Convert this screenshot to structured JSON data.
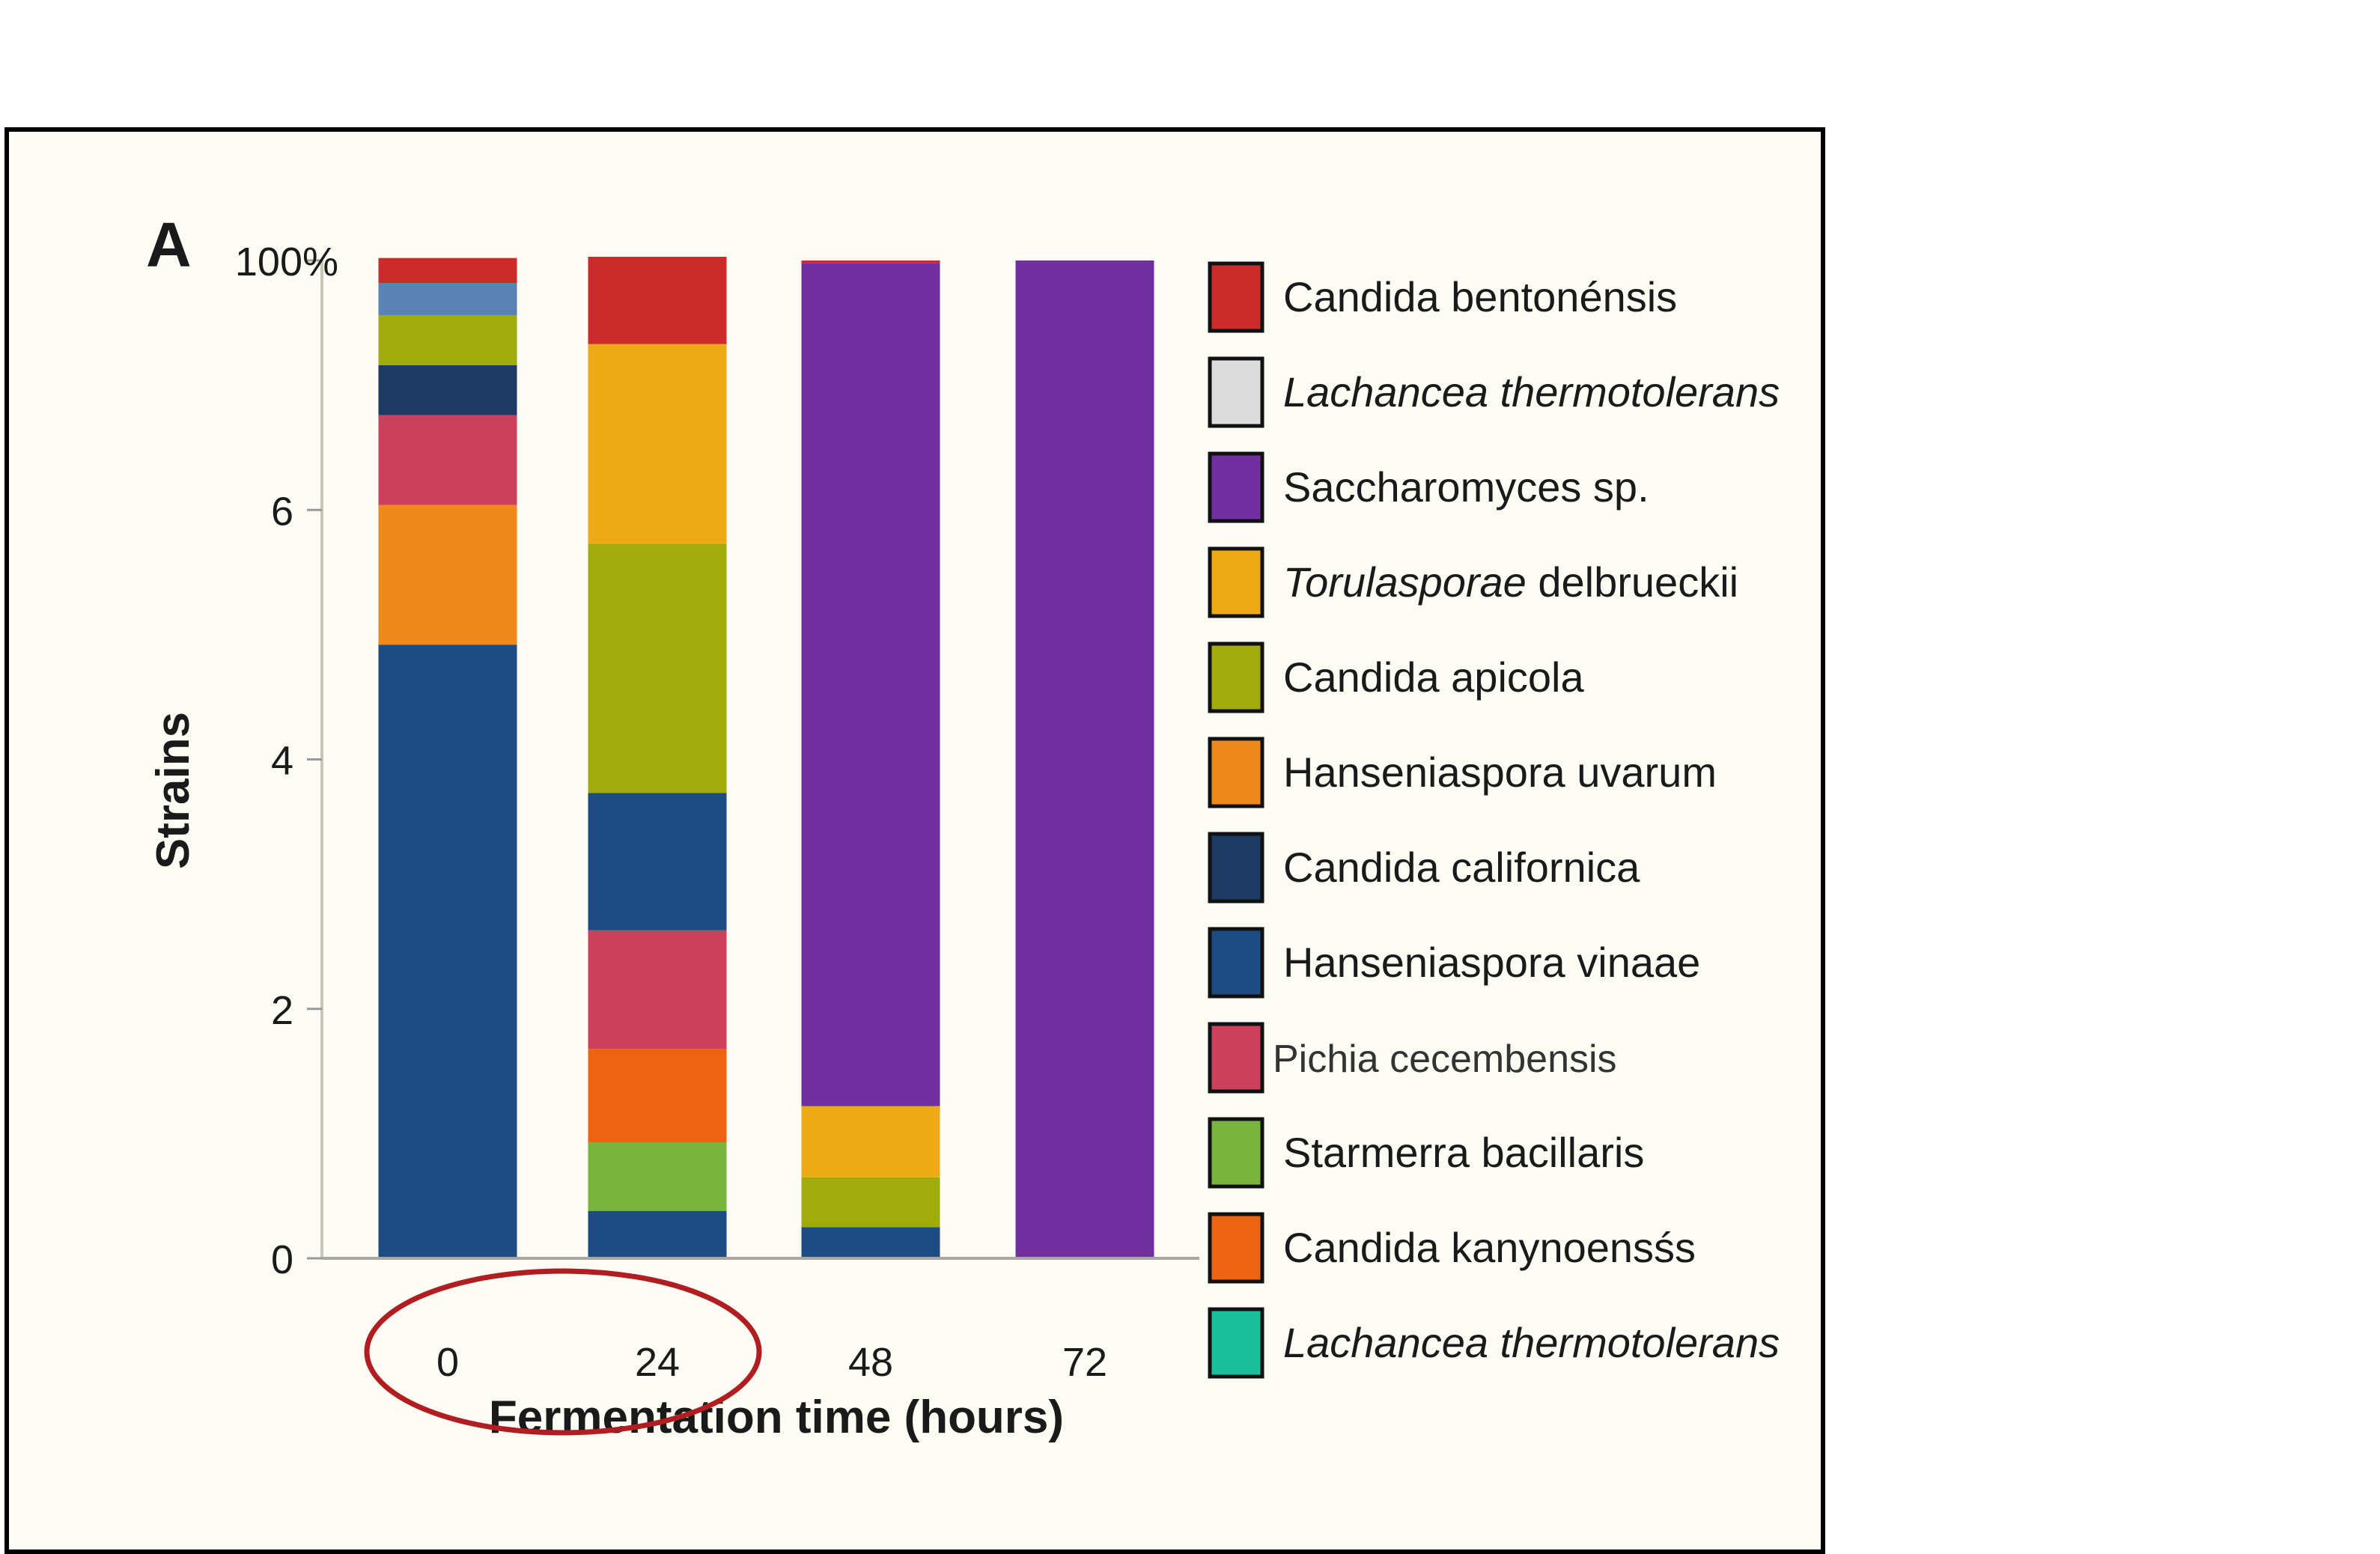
{
  "chart_data": {
    "type": "bar",
    "stacked": true,
    "panel_label": "A",
    "xlabel": "Fermentation time (hours)",
    "ylabel": "Strains",
    "categories": [
      "0",
      "24",
      "48",
      "72"
    ],
    "y_ticks": [
      "0",
      "2",
      "4",
      "6",
      "100%"
    ],
    "ylim": [
      0,
      8
    ],
    "grid": false,
    "legend_position": "right",
    "highlight": {
      "shape": "ellipse",
      "categories": [
        "0",
        "24"
      ],
      "color": "#b01e22"
    },
    "series": [
      {
        "name": "Candida bentonénsis",
        "color": "#cc2b2b",
        "values": [
          0.2,
          0.7,
          0.02,
          0
        ]
      },
      {
        "name": "Lachancea thermotolerans",
        "color": "#dcdcdc",
        "values": [
          0,
          0,
          0,
          0
        ]
      },
      {
        "name": "Saccharomyces sp.",
        "color": "#7030a0",
        "values": [
          0,
          0,
          6.76,
          8.0
        ]
      },
      {
        "name": "Torulasporae delbrueckii",
        "color": "#eeaa14",
        "values": [
          0,
          1.6,
          0.57,
          0
        ]
      },
      {
        "name": "Candida apicola",
        "color": "#a0ac0c",
        "values": [
          0.4,
          2.0,
          0.4,
          0
        ]
      },
      {
        "name": "Hanseniaspora uvarum",
        "color": "#ee8a1c",
        "values": [
          1.12,
          0,
          0,
          0
        ]
      },
      {
        "name": "Candida californica",
        "color": "#1c3a62",
        "values": [
          0.4,
          0,
          0,
          0
        ]
      },
      {
        "name": "Hanseniaspora vinaae",
        "color": "#1c4c82",
        "values": [
          4.92,
          1.1,
          0.25,
          0
        ]
      },
      {
        "name": "Pichia cecembensis",
        "color": "#cc405e",
        "values": [
          0.72,
          0.95,
          0,
          0
        ]
      },
      {
        "name": "Starmerra bacillaris",
        "color": "#7ab43c",
        "values": [
          0,
          0.55,
          0,
          0
        ]
      },
      {
        "name": "Candida kanynoensśs",
        "color": "#ec6412",
        "values": [
          0,
          0.75,
          0,
          0
        ]
      },
      {
        "name": "Lachancea thermotolerans",
        "color": "#1ac09a",
        "values": [
          0,
          0,
          0,
          0
        ]
      }
    ],
    "legend": [
      {
        "label": "Candida bentonénsis",
        "color": "#cc2b2b",
        "style": "normal"
      },
      {
        "label": "Lachancea thermotolerans",
        "color": "#dcdcdc",
        "style": "italic"
      },
      {
        "label": "Saccharomyces sp.",
        "color": "#7030a0",
        "style": "normal"
      },
      {
        "label_italic": "Torulasporae",
        "label_rest": " delbrueckii",
        "color": "#eeaa14",
        "style": "mixed"
      },
      {
        "label": "Candida apicola",
        "color": "#a0ac0c",
        "style": "normal"
      },
      {
        "label": "Hanseniaspora uvarum",
        "color": "#ee8a1c",
        "style": "normal"
      },
      {
        "label": "Candida californica",
        "color": "#1c3a62",
        "style": "normal"
      },
      {
        "label": "Hanseniaspora vinaae",
        "color": "#1c4c82",
        "style": "normal"
      },
      {
        "label": "Pichia cecembensis",
        "color": "#cc405e",
        "style": "light"
      },
      {
        "label": "Starmerra bacillaris",
        "color": "#7ab43c",
        "style": "normal"
      },
      {
        "label": "Candida kanynoensśs",
        "color": "#ec6412",
        "style": "normal"
      },
      {
        "label": "Lachancea thermotolerans",
        "color": "#1ac09a",
        "style": "italic"
      }
    ],
    "stack_order_bottom_to_top": {
      "0": [
        "Hanseniaspora vinaae",
        "Hanseniaspora uvarum",
        "Pichia cecembensis",
        "Candida californica",
        "Candida apicola",
        "Hanseniaspora vinaae (light)",
        "Candida bentonénsis"
      ],
      "24": [
        "Hanseniaspora vinaae",
        "Starmerra bacillaris",
        "Candida kanynoensśs",
        "Pichia cecembensis",
        "Hanseniaspora vinaae",
        "Candida apicola",
        "Torulasporae delbrueckii",
        "Candida bentonénsis"
      ],
      "48": [
        "Hanseniaspora vinaae",
        "Candida apicola",
        "Torulasporae delbrueckii",
        "Saccharomyces sp.",
        "Candida bentonénsis"
      ],
      "72": [
        "Saccharomyces sp."
      ]
    }
  }
}
